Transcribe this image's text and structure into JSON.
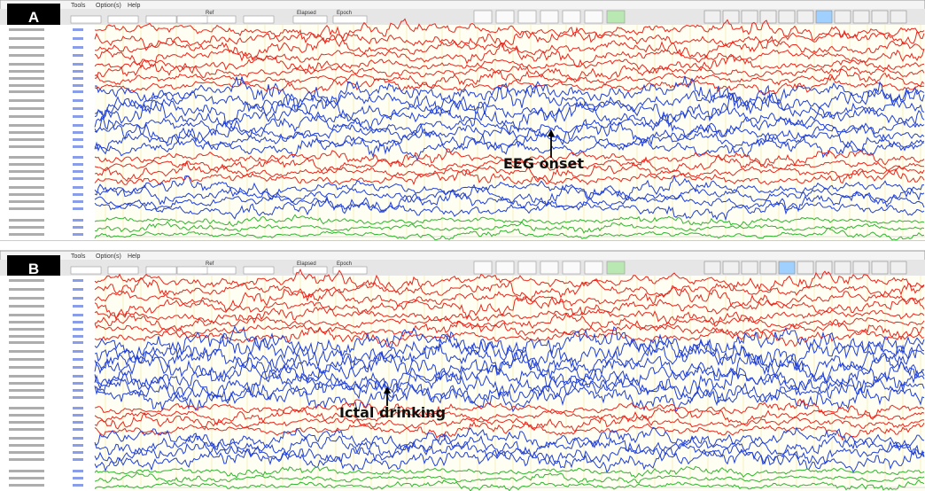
{
  "menu": [
    "Tools",
    "Option(s)",
    "Help"
  ],
  "toolbar": {
    "fields": [
      "Ref",
      "Elapsed",
      "Epoch"
    ]
  },
  "panels": [
    {
      "label": "A",
      "annotation": "EEG onset"
    },
    {
      "label": "B",
      "annotation": "Ictal drinking"
    }
  ]
}
